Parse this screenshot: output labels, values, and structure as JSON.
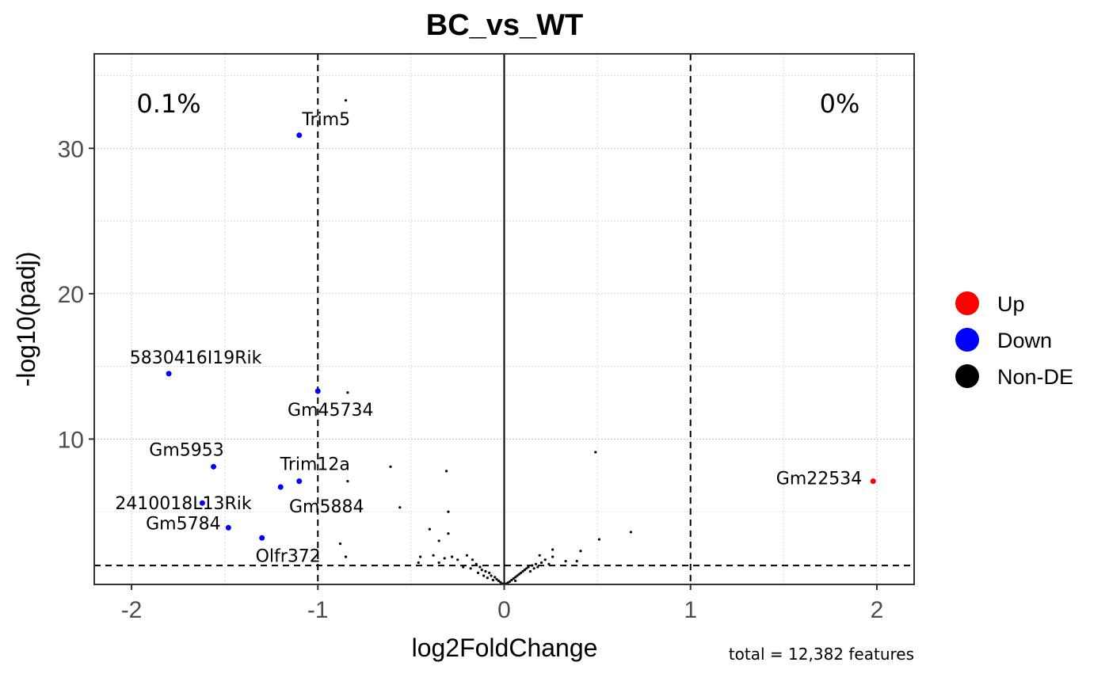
{
  "chart_data": {
    "type": "scatter",
    "title": "BC_vs_WT",
    "xlabel": "log2FoldChange",
    "ylabel": "-log10(padj)",
    "xlim": [
      -2.2,
      2.2
    ],
    "ylim": [
      0,
      36.5
    ],
    "xticks": [
      -2,
      -1,
      0,
      1,
      2
    ],
    "yticks": [
      10,
      20,
      30
    ],
    "grid": true,
    "thresholds": {
      "log2fc": [
        -1,
        1
      ],
      "neg_log10_padj": 1.3
    },
    "percent_down": "0.1%",
    "percent_up": "0%",
    "caption": "total = 12,382 features",
    "colors": {
      "Up": "#ff0000",
      "Down": "#0000ff",
      "Non-DE": "#000000"
    },
    "legend": {
      "position": "right",
      "entries": [
        {
          "label": "Up",
          "color": "#ff0000"
        },
        {
          "label": "Down",
          "color": "#0000ff"
        },
        {
          "label": "Non-DE",
          "color": "#000000"
        }
      ]
    },
    "labeled_points": [
      {
        "gene": "Trim5",
        "x": -1.1,
        "y": 30.9,
        "group": "Down"
      },
      {
        "gene": "5830416I19Rik",
        "x": -1.8,
        "y": 14.5,
        "group": "Down"
      },
      {
        "gene": "Gm45734",
        "x": -1.0,
        "y": 13.3,
        "group": "Down"
      },
      {
        "gene": "Gm5953",
        "x": -1.56,
        "y": 8.1,
        "group": "Down"
      },
      {
        "gene": "Trim12a",
        "x": -1.1,
        "y": 7.1,
        "group": "Down"
      },
      {
        "gene": "Gm5884",
        "x": -1.2,
        "y": 6.7,
        "group": "Down"
      },
      {
        "gene": "2410018L13Rik",
        "x": -1.62,
        "y": 5.6,
        "group": "Down"
      },
      {
        "gene": "Gm5784",
        "x": -1.48,
        "y": 3.9,
        "group": "Down"
      },
      {
        "gene": "Olfr372",
        "x": -1.3,
        "y": 3.2,
        "group": "Down"
      },
      {
        "gene": "Gm22534",
        "x": 1.98,
        "y": 7.1,
        "group": "Up"
      }
    ],
    "other_points": [
      [
        -0.85,
        33.3
      ],
      [
        -0.84,
        13.2
      ],
      [
        -0.84,
        7.1
      ],
      [
        -0.61,
        8.1
      ],
      [
        -0.56,
        5.3
      ],
      [
        -0.31,
        7.8
      ],
      [
        -0.3,
        5.0
      ],
      [
        -0.4,
        3.8
      ],
      [
        -0.3,
        3.5
      ],
      [
        -0.35,
        3.0
      ],
      [
        -0.88,
        2.8
      ],
      [
        -0.85,
        1.9
      ],
      [
        -0.45,
        1.9
      ],
      [
        -0.46,
        1.5
      ],
      [
        -0.38,
        2.0
      ],
      [
        -0.35,
        1.5
      ],
      [
        -0.32,
        1.8
      ],
      [
        -0.28,
        1.9
      ],
      [
        -0.25,
        1.7
      ],
      [
        -0.2,
        2.0
      ],
      [
        -0.17,
        1.7
      ],
      [
        -0.15,
        1.4
      ],
      [
        -0.13,
        1.2
      ],
      [
        -0.12,
        1.0
      ],
      [
        -0.1,
        0.9
      ],
      [
        -0.08,
        0.8
      ],
      [
        -0.07,
        0.6
      ],
      [
        -0.05,
        0.5
      ],
      [
        -0.04,
        0.35
      ],
      [
        -0.03,
        0.25
      ],
      [
        -0.02,
        0.15
      ],
      [
        -0.01,
        0.05
      ],
      [
        0.0,
        0.0
      ],
      [
        0.01,
        0.05
      ],
      [
        0.02,
        0.12
      ],
      [
        0.03,
        0.2
      ],
      [
        0.04,
        0.3
      ],
      [
        0.05,
        0.4
      ],
      [
        0.06,
        0.5
      ],
      [
        0.07,
        0.6
      ],
      [
        0.08,
        0.7
      ],
      [
        0.09,
        0.8
      ],
      [
        0.1,
        0.9
      ],
      [
        0.11,
        1.0
      ],
      [
        0.12,
        1.1
      ],
      [
        0.13,
        1.2
      ],
      [
        0.15,
        1.3
      ],
      [
        0.17,
        1.4
      ],
      [
        0.18,
        1.2
      ],
      [
        0.2,
        1.5
      ],
      [
        0.22,
        1.7
      ],
      [
        0.19,
        2.0
      ],
      [
        0.24,
        1.4
      ],
      [
        0.26,
        2.4
      ],
      [
        0.26,
        1.9
      ],
      [
        0.33,
        1.6
      ],
      [
        0.39,
        1.6
      ],
      [
        0.41,
        2.3
      ],
      [
        0.49,
        9.1
      ],
      [
        0.51,
        3.1
      ],
      [
        0.68,
        3.6
      ],
      [
        -0.22,
        1.2
      ],
      [
        -0.18,
        1.1
      ],
      [
        -0.14,
        0.8
      ],
      [
        -0.11,
        0.6
      ],
      [
        0.14,
        0.9
      ],
      [
        0.16,
        1.1
      ],
      [
        -0.06,
        0.3
      ],
      [
        0.06,
        0.25
      ],
      [
        -0.09,
        0.45
      ]
    ]
  }
}
